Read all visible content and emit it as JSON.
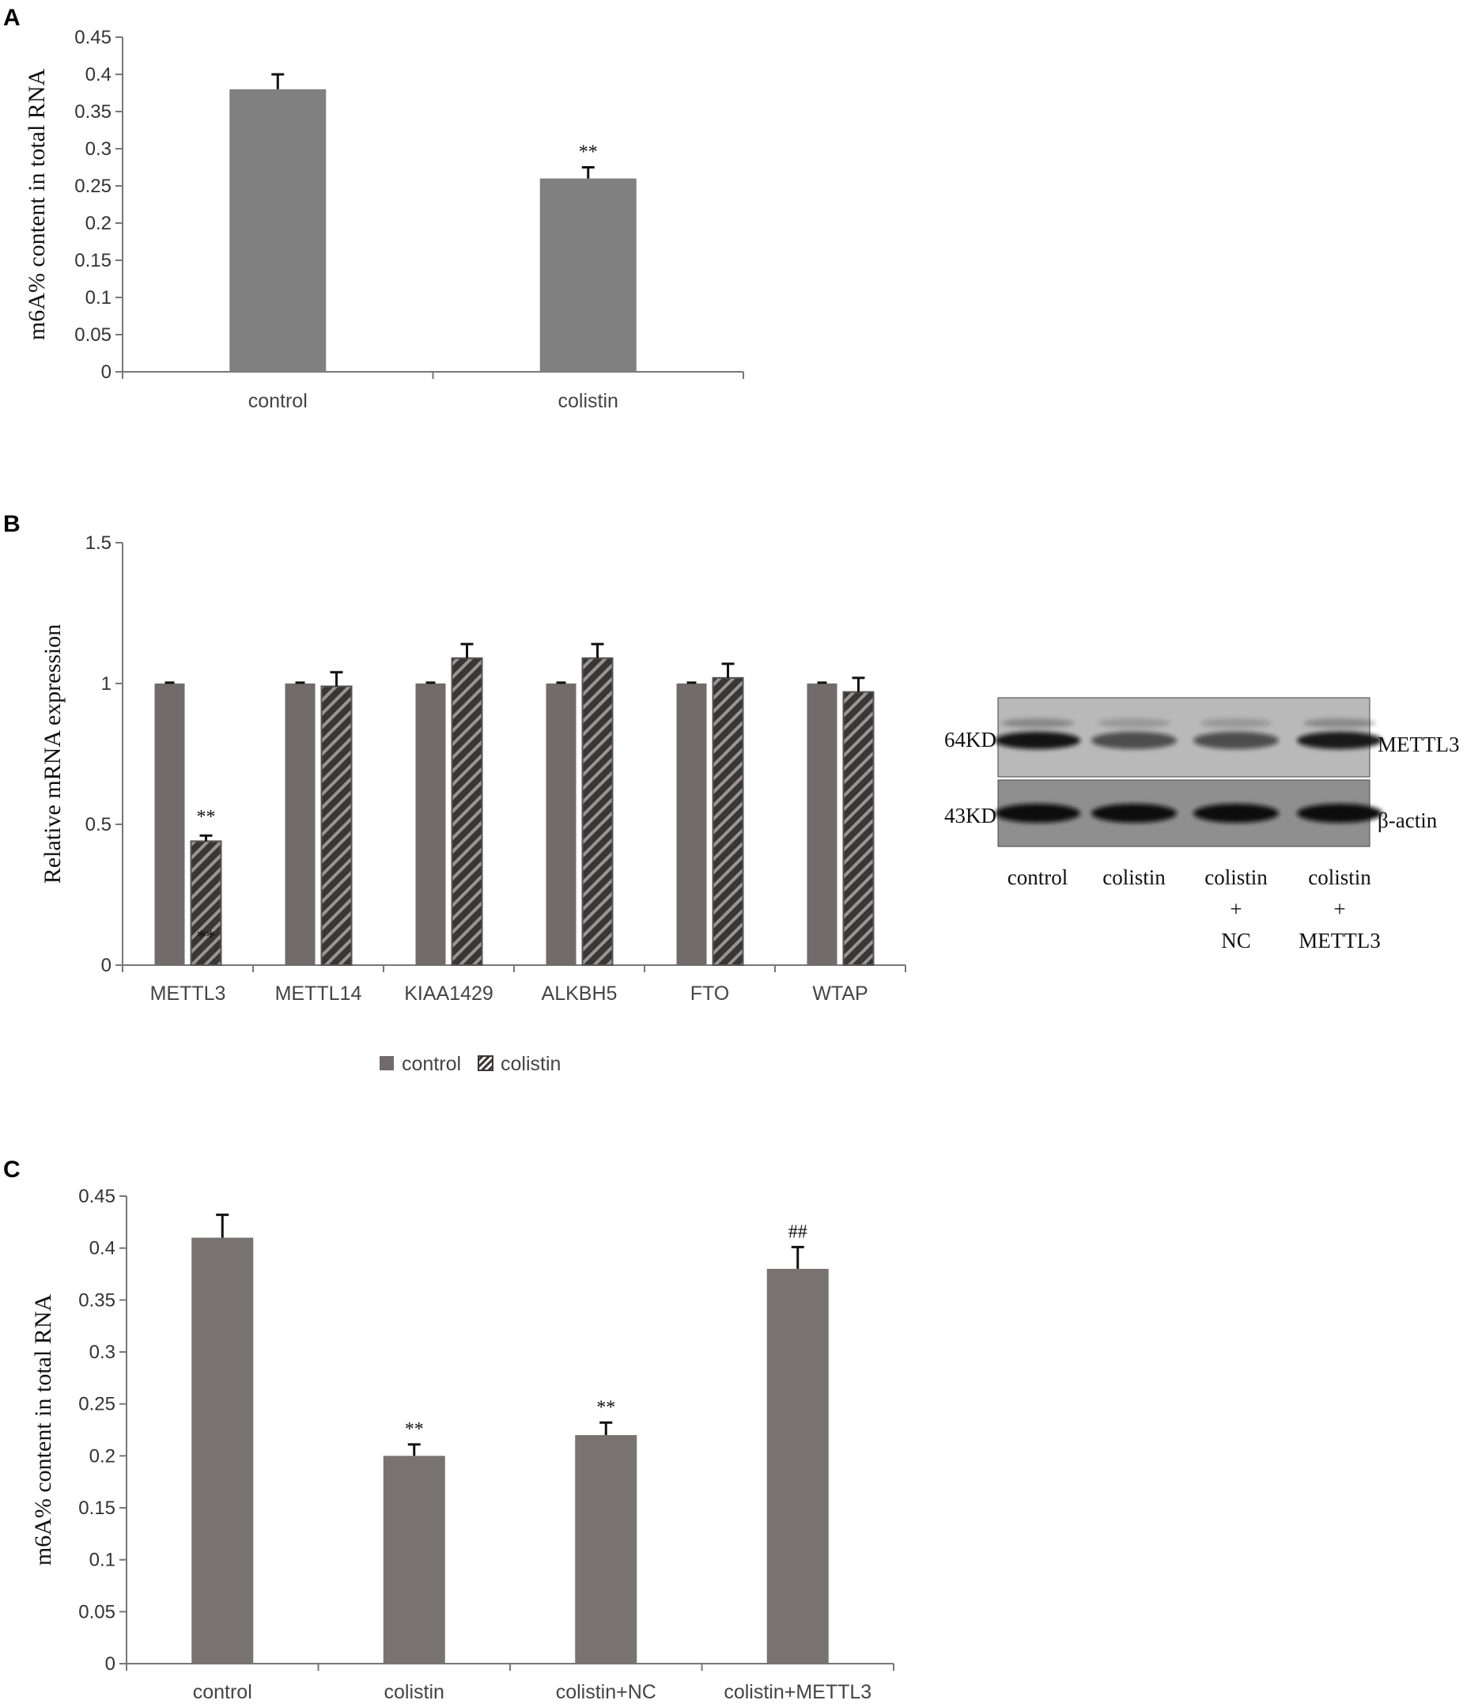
{
  "chart_data": [
    {
      "panel": "A",
      "type": "bar",
      "ylabel": "m6A% content in total RNA",
      "xlabel": "",
      "ylim": [
        0,
        0.45
      ],
      "yticks": [
        "0",
        "0.05",
        "0.1",
        "0.15",
        "0.2",
        "0.25",
        "0.3",
        "0.35",
        "0.4",
        "0.45"
      ],
      "categories": [
        "control",
        "colistin"
      ],
      "values": [
        0.38,
        0.26
      ],
      "errors": [
        0.02,
        0.015
      ],
      "annotations": [
        "",
        "**"
      ],
      "bar_color": "#808080"
    },
    {
      "panel": "B",
      "type": "bar",
      "ylabel": "Relative mRNA expression",
      "xlabel": "",
      "ylim": [
        0,
        1.5
      ],
      "yticks": [
        "0",
        "0.5",
        "1",
        "1.5"
      ],
      "categories": [
        "METTL3",
        "METTL14",
        "KIAA1429",
        "ALKBH5",
        "FTO",
        "WTAP"
      ],
      "series": [
        {
          "name": "control",
          "values": [
            1.0,
            1.0,
            1.0,
            1.0,
            1.0,
            1.0
          ],
          "errors": [
            0.003,
            0.003,
            0.003,
            0.003,
            0.003,
            0.003
          ],
          "color": "#716b6b",
          "pattern": "solid"
        },
        {
          "name": "colistin",
          "values": [
            0.44,
            0.99,
            1.09,
            1.09,
            1.02,
            0.97
          ],
          "errors": [
            0.02,
            0.05,
            0.05,
            0.05,
            0.05,
            0.05
          ],
          "color": "#3c3939",
          "pattern": "hatched"
        }
      ],
      "annotations": [
        {
          "category": "METTL3",
          "series": "colistin",
          "text": "**",
          "position": "above"
        },
        {
          "category": "METTL3",
          "series": "colistin",
          "text": "**",
          "position": "inside"
        }
      ],
      "legend": {
        "placement": "bottom-center",
        "entries": [
          "control",
          "colistin"
        ]
      }
    },
    {
      "panel": "C",
      "type": "bar",
      "ylabel": "m6A% content in total RNA",
      "xlabel": "",
      "ylim": [
        0,
        0.45
      ],
      "yticks": [
        "0",
        "0.05",
        "0.1",
        "0.15",
        "0.2",
        "0.25",
        "0.3",
        "0.35",
        "0.4",
        "0.45"
      ],
      "categories": [
        "control",
        "colistin",
        "colistin+NC",
        "colistin+METTL3"
      ],
      "values": [
        0.41,
        0.2,
        0.22,
        0.38
      ],
      "errors": [
        0.022,
        0.011,
        0.012,
        0.021
      ],
      "annotations": [
        "",
        "**",
        "**",
        "##"
      ],
      "bar_color": "#787272"
    }
  ],
  "blot": {
    "panel": "B",
    "rows": [
      {
        "marker": "64KD",
        "protein": "METTL3",
        "band_intensity": [
          0.95,
          0.5,
          0.5,
          0.9
        ]
      },
      {
        "marker": "43KD",
        "protein": "β-actin",
        "band_intensity": [
          1.0,
          1.0,
          1.0,
          1.0
        ]
      }
    ],
    "lanes": [
      {
        "lines": [
          "control"
        ]
      },
      {
        "lines": [
          "colistin"
        ]
      },
      {
        "lines": [
          "colistin",
          "+",
          "NC"
        ]
      },
      {
        "lines": [
          "colistin",
          "+",
          "METTL3"
        ]
      }
    ]
  }
}
